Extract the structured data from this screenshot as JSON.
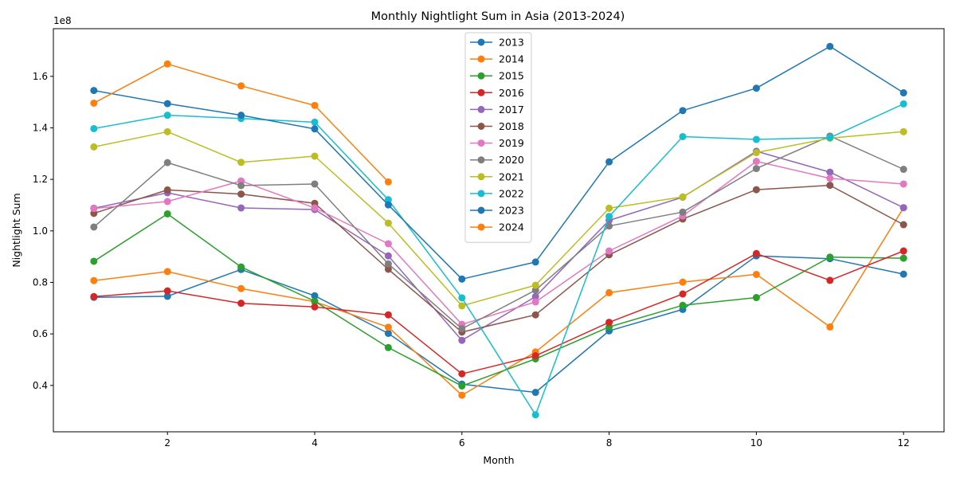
{
  "chart_data": {
    "type": "line",
    "title": "Monthly Nightlight Sum in Asia (2013-2024)",
    "xlabel": "Month",
    "ylabel": "Nightlight Sum",
    "y_offset_label": "1e8",
    "y_scale": 100000000,
    "xlim": [
      0.45,
      12.55
    ],
    "ylim": [
      0.22,
      1.785
    ],
    "x_ticks": [
      2,
      4,
      6,
      8,
      10,
      12
    ],
    "y_ticks": [
      0.4,
      0.6,
      0.8,
      1.0,
      1.2,
      1.4,
      1.6
    ],
    "y_tick_labels": [
      "0.4",
      "0.6",
      "0.8",
      "1.0",
      "1.2",
      "1.4",
      "1.6"
    ],
    "grid": false,
    "legend_position": "top-center",
    "series": [
      {
        "name": "2013",
        "color": "#1f77b4",
        "x": [
          1,
          2,
          3,
          4,
          5,
          6,
          7,
          8,
          9,
          10,
          11,
          12
        ],
        "y": [
          0.742,
          0.746,
          0.85,
          0.748,
          0.602,
          0.405,
          0.373,
          0.612,
          0.695,
          0.903,
          0.892,
          0.832
        ]
      },
      {
        "name": "2014",
        "color": "#ff7f0e",
        "x": [
          1,
          2,
          3,
          4,
          5,
          6,
          7,
          8,
          9,
          10,
          11,
          12
        ],
        "y": [
          0.807,
          0.842,
          0.776,
          0.725,
          0.626,
          0.362,
          0.53,
          0.76,
          0.801,
          0.831,
          0.627,
          1.09
        ]
      },
      {
        "name": "2015",
        "color": "#2ca02c",
        "x": [
          1,
          2,
          3,
          4,
          5,
          6,
          7,
          8,
          9,
          10,
          11,
          12
        ],
        "y": [
          0.882,
          1.066,
          0.86,
          0.727,
          0.547,
          0.398,
          0.503,
          0.627,
          0.711,
          0.741,
          0.898,
          0.894
        ]
      },
      {
        "name": "2016",
        "color": "#d62728",
        "x": [
          1,
          2,
          3,
          4,
          5,
          6,
          7,
          8,
          9,
          10,
          11,
          12
        ],
        "y": [
          0.745,
          0.767,
          0.719,
          0.705,
          0.674,
          0.445,
          0.515,
          0.645,
          0.755,
          0.912,
          0.808,
          0.922
        ]
      },
      {
        "name": "2017",
        "color": "#9467bd",
        "x": [
          1,
          2,
          3,
          4,
          5,
          6,
          7,
          8,
          9,
          10,
          11,
          12
        ],
        "y": [
          1.088,
          1.148,
          1.089,
          1.083,
          0.903,
          0.575,
          0.745,
          1.041,
          1.131,
          1.309,
          1.228,
          1.09
        ]
      },
      {
        "name": "2018",
        "color": "#8c564b",
        "x": [
          1,
          2,
          3,
          4,
          5,
          6,
          7,
          8,
          9,
          10,
          11,
          12
        ],
        "y": [
          1.068,
          1.159,
          1.143,
          1.107,
          0.851,
          0.607,
          0.674,
          0.907,
          1.046,
          1.16,
          1.177,
          1.024
        ]
      },
      {
        "name": "2019",
        "color": "#e377c2",
        "x": [
          1,
          2,
          3,
          4,
          5,
          6,
          7,
          8,
          9,
          10,
          11,
          12
        ],
        "y": [
          1.087,
          1.114,
          1.194,
          1.089,
          0.95,
          0.637,
          0.724,
          0.922,
          1.058,
          1.27,
          1.204,
          1.182
        ]
      },
      {
        "name": "2020",
        "color": "#7f7f7f",
        "x": [
          1,
          2,
          3,
          4,
          5,
          6,
          7,
          8,
          9,
          10,
          11,
          12
        ],
        "y": [
          1.015,
          1.265,
          1.176,
          1.182,
          0.872,
          0.62,
          0.77,
          1.019,
          1.073,
          1.242,
          1.368,
          1.239
        ]
      },
      {
        "name": "2021",
        "color": "#bcbd22",
        "x": [
          1,
          2,
          3,
          4,
          5,
          6,
          7,
          8,
          9,
          10,
          11,
          12
        ],
        "y": [
          1.326,
          1.385,
          1.266,
          1.29,
          1.03,
          0.709,
          0.789,
          1.088,
          1.132,
          1.304,
          1.36,
          1.385
        ]
      },
      {
        "name": "2022",
        "color": "#17becf",
        "x": [
          1,
          2,
          3,
          4,
          5,
          6,
          7,
          8,
          9,
          10,
          11,
          12
        ],
        "y": [
          1.397,
          1.449,
          1.436,
          1.422,
          1.121,
          0.74,
          0.286,
          1.056,
          1.366,
          1.355,
          1.362,
          1.493
        ]
      },
      {
        "name": "2023",
        "color": "#1f77b4",
        "x": [
          1,
          2,
          3,
          4,
          5,
          6,
          7,
          8,
          9,
          10,
          11,
          12
        ],
        "y": [
          1.545,
          1.494,
          1.449,
          1.396,
          1.101,
          0.813,
          0.879,
          1.268,
          1.467,
          1.554,
          1.716,
          1.536
        ]
      },
      {
        "name": "2024",
        "color": "#ff7f0e",
        "x": [
          1,
          2,
          3,
          4,
          5
        ],
        "y": [
          1.496,
          1.648,
          1.563,
          1.487,
          1.19
        ]
      }
    ]
  }
}
